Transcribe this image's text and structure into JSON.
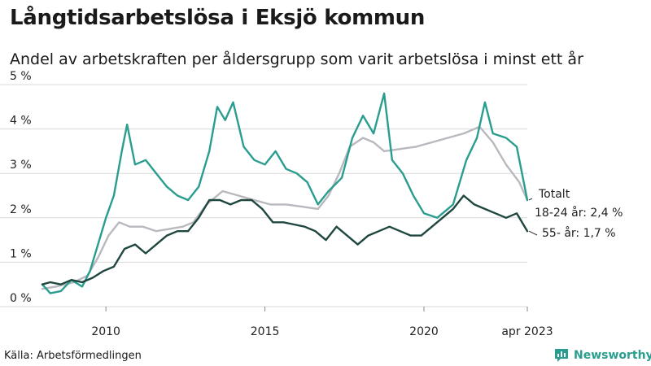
{
  "title": "Långtidsarbetslösa i Eksjö kommun",
  "subtitle": "Andel av arbetskraften per åldersgrupp som varit arbetslösa i minst ett år",
  "source": "Källa: Arbetsförmedlingen",
  "brand": "Newsworthy",
  "chart_data": {
    "type": "line",
    "x_tick_labels": [
      "2010",
      "2015",
      "2020",
      "apr 2023"
    ],
    "x_ticks": [
      "2010-01",
      "2015-01",
      "2020-01",
      "2023-04"
    ],
    "y_tick_labels": [
      "0 %",
      "1 %",
      "2 %",
      "3 %",
      "4 %",
      "5 %"
    ],
    "ylim": [
      0,
      5
    ],
    "xlim": [
      "2008-01",
      "2023-04"
    ],
    "grid": true,
    "series": [
      {
        "name": "Totalt",
        "color": "#b8b8bf",
        "points": [
          [
            "2008-01",
            0.4
          ],
          [
            "2008-06",
            0.45
          ],
          [
            "2009-01",
            0.55
          ],
          [
            "2009-06",
            0.7
          ],
          [
            "2009-10",
            1.1
          ],
          [
            "2010-02",
            1.6
          ],
          [
            "2010-06",
            1.9
          ],
          [
            "2010-10",
            1.8
          ],
          [
            "2011-03",
            1.8
          ],
          [
            "2011-08",
            1.7
          ],
          [
            "2012-01",
            1.75
          ],
          [
            "2012-06",
            1.8
          ],
          [
            "2012-10",
            1.9
          ],
          [
            "2013-03",
            2.3
          ],
          [
            "2013-09",
            2.6
          ],
          [
            "2014-03",
            2.5
          ],
          [
            "2014-09",
            2.4
          ],
          [
            "2015-03",
            2.3
          ],
          [
            "2015-09",
            2.3
          ],
          [
            "2016-03",
            2.25
          ],
          [
            "2016-09",
            2.2
          ],
          [
            "2017-01",
            2.5
          ],
          [
            "2017-05",
            3.0
          ],
          [
            "2017-09",
            3.6
          ],
          [
            "2018-02",
            3.8
          ],
          [
            "2018-06",
            3.7
          ],
          [
            "2018-10",
            3.5
          ],
          [
            "2019-04",
            3.55
          ],
          [
            "2019-10",
            3.6
          ],
          [
            "2020-04",
            3.7
          ],
          [
            "2020-10",
            3.8
          ],
          [
            "2021-04",
            3.9
          ],
          [
            "2021-10",
            4.05
          ],
          [
            "2022-03",
            3.7
          ],
          [
            "2022-08",
            3.2
          ],
          [
            "2023-01",
            2.8
          ],
          [
            "2023-04",
            2.4
          ]
        ]
      },
      {
        "name": "18-24 år",
        "color": "#2a9d8f",
        "end_label": "18-24 år: 2,4 %",
        "points": [
          [
            "2008-01",
            0.5
          ],
          [
            "2008-04",
            0.3
          ],
          [
            "2008-08",
            0.35
          ],
          [
            "2008-12",
            0.6
          ],
          [
            "2009-04",
            0.45
          ],
          [
            "2009-07",
            0.8
          ],
          [
            "2009-10",
            1.4
          ],
          [
            "2010-01",
            2.0
          ],
          [
            "2010-04",
            2.5
          ],
          [
            "2010-07",
            3.5
          ],
          [
            "2010-09",
            4.1
          ],
          [
            "2010-12",
            3.2
          ],
          [
            "2011-04",
            3.3
          ],
          [
            "2011-08",
            3.0
          ],
          [
            "2011-12",
            2.7
          ],
          [
            "2012-04",
            2.5
          ],
          [
            "2012-08",
            2.4
          ],
          [
            "2012-12",
            2.7
          ],
          [
            "2013-04",
            3.5
          ],
          [
            "2013-07",
            4.5
          ],
          [
            "2013-10",
            4.2
          ],
          [
            "2014-01",
            4.6
          ],
          [
            "2014-05",
            3.6
          ],
          [
            "2014-09",
            3.3
          ],
          [
            "2015-01",
            3.2
          ],
          [
            "2015-05",
            3.5
          ],
          [
            "2015-09",
            3.1
          ],
          [
            "2016-01",
            3.0
          ],
          [
            "2016-05",
            2.8
          ],
          [
            "2016-09",
            2.3
          ],
          [
            "2017-01",
            2.6
          ],
          [
            "2017-06",
            2.9
          ],
          [
            "2017-10",
            3.8
          ],
          [
            "2018-02",
            4.3
          ],
          [
            "2018-06",
            3.9
          ],
          [
            "2018-10",
            4.8
          ],
          [
            "2019-01",
            3.3
          ],
          [
            "2019-05",
            3.0
          ],
          [
            "2019-09",
            2.5
          ],
          [
            "2020-01",
            2.1
          ],
          [
            "2020-06",
            2.0
          ],
          [
            "2020-12",
            2.3
          ],
          [
            "2021-05",
            3.3
          ],
          [
            "2021-09",
            3.8
          ],
          [
            "2021-12",
            4.6
          ],
          [
            "2022-03",
            3.9
          ],
          [
            "2022-08",
            3.8
          ],
          [
            "2022-12",
            3.6
          ],
          [
            "2023-04",
            2.4
          ]
        ]
      },
      {
        "name": "55- år",
        "color": "#1f4740",
        "end_label": "55- år: 1,7 %",
        "points": [
          [
            "2008-01",
            0.5
          ],
          [
            "2008-04",
            0.55
          ],
          [
            "2008-08",
            0.5
          ],
          [
            "2008-12",
            0.6
          ],
          [
            "2009-04",
            0.55
          ],
          [
            "2009-08",
            0.65
          ],
          [
            "2009-12",
            0.8
          ],
          [
            "2010-04",
            0.9
          ],
          [
            "2010-08",
            1.3
          ],
          [
            "2010-12",
            1.4
          ],
          [
            "2011-04",
            1.2
          ],
          [
            "2011-08",
            1.4
          ],
          [
            "2011-12",
            1.6
          ],
          [
            "2012-04",
            1.7
          ],
          [
            "2012-08",
            1.7
          ],
          [
            "2012-12",
            2.0
          ],
          [
            "2013-04",
            2.4
          ],
          [
            "2013-08",
            2.4
          ],
          [
            "2013-12",
            2.3
          ],
          [
            "2014-04",
            2.4
          ],
          [
            "2014-08",
            2.4
          ],
          [
            "2014-12",
            2.2
          ],
          [
            "2015-04",
            1.9
          ],
          [
            "2015-08",
            1.9
          ],
          [
            "2015-12",
            1.85
          ],
          [
            "2016-04",
            1.8
          ],
          [
            "2016-08",
            1.7
          ],
          [
            "2016-12",
            1.5
          ],
          [
            "2017-04",
            1.8
          ],
          [
            "2017-08",
            1.6
          ],
          [
            "2017-12",
            1.4
          ],
          [
            "2018-04",
            1.6
          ],
          [
            "2018-08",
            1.7
          ],
          [
            "2018-12",
            1.8
          ],
          [
            "2019-04",
            1.7
          ],
          [
            "2019-08",
            1.6
          ],
          [
            "2019-12",
            1.6
          ],
          [
            "2020-04",
            1.8
          ],
          [
            "2020-08",
            2.0
          ],
          [
            "2020-12",
            2.2
          ],
          [
            "2021-04",
            2.5
          ],
          [
            "2021-08",
            2.3
          ],
          [
            "2021-12",
            2.2
          ],
          [
            "2022-04",
            2.1
          ],
          [
            "2022-08",
            2.0
          ],
          [
            "2022-12",
            2.1
          ],
          [
            "2023-04",
            1.7
          ]
        ]
      }
    ]
  }
}
